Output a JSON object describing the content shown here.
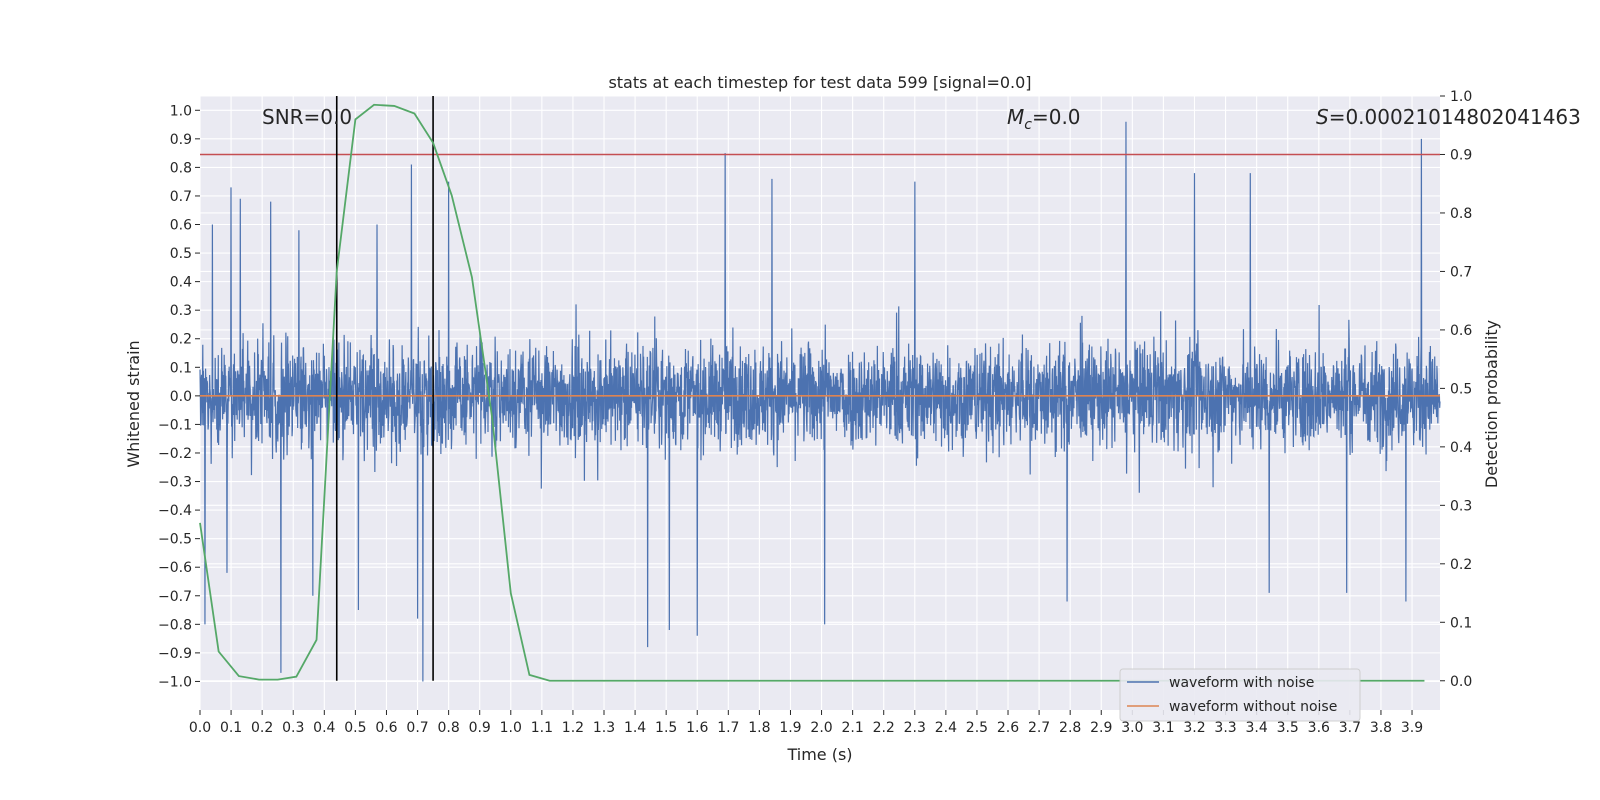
{
  "chart_data": {
    "type": "line",
    "title": "stats at each timestep for test data 599 [signal=0.0]",
    "xlabel": "Time (s)",
    "ylabel": "Whitened strain",
    "y2label": "Detection probability",
    "xlim": [
      0.0,
      3.99
    ],
    "ylim": [
      -1.1,
      1.05
    ],
    "y2lim": [
      -0.05,
      1.0
    ],
    "x_ticks": [
      "0.0",
      "0.1",
      "0.2",
      "0.3",
      "0.4",
      "0.5",
      "0.6",
      "0.7",
      "0.8",
      "0.9",
      "1.0",
      "1.1",
      "1.2",
      "1.3",
      "1.4",
      "1.5",
      "1.6",
      "1.7",
      "1.8",
      "1.9",
      "2.0",
      "2.1",
      "2.2",
      "2.3",
      "2.4",
      "2.5",
      "2.6",
      "2.7",
      "2.8",
      "2.9",
      "3.0",
      "3.1",
      "3.2",
      "3.3",
      "3.4",
      "3.5",
      "3.6",
      "3.7",
      "3.8",
      "3.9"
    ],
    "y_ticks": [
      "1.0",
      "0.9",
      "0.8",
      "0.7",
      "0.6",
      "0.5",
      "0.4",
      "0.3",
      "0.2",
      "0.1",
      "0.0",
      "−0.1",
      "−0.2",
      "−0.3",
      "−0.4",
      "−0.5",
      "−0.6",
      "−0.7",
      "−0.8",
      "−0.9",
      "−1.0"
    ],
    "y2_ticks": [
      "1.0",
      "0.9",
      "0.8",
      "0.7",
      "0.6",
      "0.5",
      "0.4",
      "0.3",
      "0.2",
      "0.1",
      "0.0"
    ],
    "grid": true,
    "legend_position": "lower-right",
    "annotations": {
      "snr": "SNR=0.0",
      "mc_symbol": "M",
      "mc_sub": "c",
      "mc_value": "=0.0",
      "s_symbol": "S",
      "s_value": "=0.00021014802041463"
    },
    "series": [
      {
        "name": "waveform with noise",
        "color": "#4c72b0",
        "axis": "left",
        "description_values": "dense noise spanning roughly -1.0 to 0.95",
        "spikes": [
          {
            "x": 0.016,
            "y": -0.8
          },
          {
            "x": 0.04,
            "y": 0.6
          },
          {
            "x": 0.087,
            "y": -0.62
          },
          {
            "x": 0.1,
            "y": 0.73
          },
          {
            "x": 0.13,
            "y": 0.69
          },
          {
            "x": 0.227,
            "y": 0.68
          },
          {
            "x": 0.26,
            "y": -0.97
          },
          {
            "x": 0.318,
            "y": 0.58
          },
          {
            "x": 0.363,
            "y": -0.7
          },
          {
            "x": 0.51,
            "y": -0.75
          },
          {
            "x": 0.57,
            "y": 0.6
          },
          {
            "x": 0.68,
            "y": 0.81
          },
          {
            "x": 0.7,
            "y": -0.78
          },
          {
            "x": 0.717,
            "y": -1.0
          },
          {
            "x": 0.8,
            "y": 0.75
          },
          {
            "x": 1.44,
            "y": -0.88
          },
          {
            "x": 1.51,
            "y": -0.82
          },
          {
            "x": 1.6,
            "y": -0.84
          },
          {
            "x": 1.69,
            "y": 0.85
          },
          {
            "x": 1.84,
            "y": 0.76
          },
          {
            "x": 2.01,
            "y": -0.8
          },
          {
            "x": 2.3,
            "y": 0.75
          },
          {
            "x": 2.79,
            "y": -0.72
          },
          {
            "x": 2.98,
            "y": 0.96
          },
          {
            "x": 3.2,
            "y": 0.78
          },
          {
            "x": 3.38,
            "y": 0.78
          },
          {
            "x": 3.44,
            "y": -0.69
          },
          {
            "x": 3.69,
            "y": -0.69
          },
          {
            "x": 3.88,
            "y": -0.72
          },
          {
            "x": 3.93,
            "y": 0.9
          }
        ]
      },
      {
        "name": "waveform without noise",
        "color": "#dd8452",
        "axis": "left",
        "x": [
          0.0,
          3.99
        ],
        "y": [
          0.0,
          0.0
        ]
      },
      {
        "name": "",
        "color": "#55a868",
        "axis": "right",
        "x": [
          0.0,
          0.06,
          0.125,
          0.19,
          0.25,
          0.31,
          0.375,
          0.44,
          0.5,
          0.56,
          0.625,
          0.69,
          0.75,
          0.81,
          0.875,
          0.94,
          1.0,
          1.06,
          1.125,
          1.19,
          1.5,
          2.0,
          2.5,
          3.0,
          3.5,
          3.94
        ],
        "y": [
          0.27,
          0.05,
          0.008,
          0.002,
          0.002,
          0.007,
          0.07,
          0.7,
          0.96,
          0.985,
          0.983,
          0.97,
          0.92,
          0.83,
          0.69,
          0.45,
          0.15,
          0.01,
          0.0,
          0.0,
          0.0,
          0.0,
          0.0,
          0.0,
          0.0,
          0.0
        ]
      }
    ],
    "threshold": {
      "axis": "right",
      "y": 0.9,
      "color": "#c44e52"
    },
    "vlines": [
      {
        "x": 0.44,
        "color": "#000000"
      },
      {
        "x": 0.75,
        "color": "#000000"
      }
    ]
  }
}
